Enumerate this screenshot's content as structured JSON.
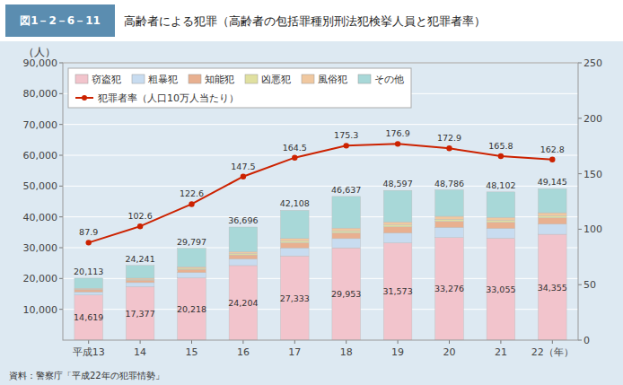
{
  "chart_data": {
    "type": "bar",
    "stacked": true,
    "title": "高齢者による犯罪（高齢者の包括罪種別刑法犯検挙人員と犯罪者率）",
    "annotations": [
      "図1－2－6－11",
      "資料：警察庁「平成22年の犯罪情勢」"
    ],
    "y_label": "（人）",
    "categories": [
      "平成13",
      "14",
      "15",
      "16",
      "17",
      "18",
      "19",
      "20",
      "21",
      "22（年）"
    ],
    "series": [
      {
        "name": "窃盗犯",
        "color": "#f2c4cc",
        "values": [
          14619,
          17377,
          20218,
          24204,
          27333,
          29953,
          31573,
          33276,
          33055,
          34355
        ],
        "data_labels": true,
        "value_labels": [
          "14,619",
          "17,377",
          "20,218",
          "24,204",
          "27,333",
          "29,953",
          "31,573",
          "33,276",
          "33,055",
          "34,355"
        ]
      },
      {
        "name": "粗暴犯",
        "color": "#c8dcf0",
        "values": [
          1050,
          1300,
          1700,
          2100,
          2600,
          3000,
          3200,
          3300,
          3200,
          3300
        ]
      },
      {
        "name": "知能犯",
        "color": "#e8b090",
        "values": [
          650,
          800,
          1050,
          1350,
          1700,
          1900,
          2000,
          2000,
          2000,
          2050
        ]
      },
      {
        "name": "凶悪犯",
        "color": "#e0e0a0",
        "values": [
          200,
          250,
          330,
          430,
          550,
          620,
          650,
          660,
          640,
          660
        ]
      },
      {
        "name": "風俗犯",
        "color": "#f0c8a0",
        "values": [
          300,
          370,
          490,
          620,
          800,
          900,
          950,
          950,
          950,
          980
        ]
      },
      {
        "name": "その他",
        "color": "#a8d8d8",
        "values": [
          3294,
          4144,
          6009,
          7992,
          9125,
          10264,
          10224,
          8600,
          8257,
          7800
        ]
      },
      {
        "name": "犯罪者率（人口10万人当たり）",
        "type": "line",
        "axis": "y2",
        "color": "#cc2200",
        "marker": "circle",
        "line_style": "solid",
        "data_labels": true,
        "values": [
          87.9,
          102.6,
          122.6,
          147.5,
          164.5,
          175.3,
          176.9,
          172.9,
          165.8,
          162.8
        ]
      }
    ],
    "totals": {
      "values": [
        20113,
        24241,
        29797,
        36696,
        42108,
        46637,
        48597,
        48786,
        48102,
        49145
      ],
      "value_labels": [
        "20,113",
        "24,241",
        "29,797",
        "36,696",
        "42,108",
        "46,637",
        "48,597",
        "48,786",
        "48,102",
        "49,145"
      ]
    },
    "ylim": [
      0,
      90000
    ],
    "yticks": [
      {
        "value": 10000,
        "label": "10,000"
      },
      {
        "value": 20000,
        "label": "20,000"
      },
      {
        "value": 30000,
        "label": "30,000"
      },
      {
        "value": 40000,
        "label": "40,000"
      },
      {
        "value": 50000,
        "label": "50,000"
      },
      {
        "value": 60000,
        "label": "60,000"
      },
      {
        "value": 70000,
        "label": "70,000"
      },
      {
        "value": 80000,
        "label": "80,000"
      },
      {
        "value": 90000,
        "label": "90,000"
      }
    ],
    "y2lim": [
      0,
      250
    ],
    "y2ticks": [
      0,
      50,
      100,
      150,
      200,
      250
    ],
    "grid": true,
    "legend": "upper left"
  }
}
